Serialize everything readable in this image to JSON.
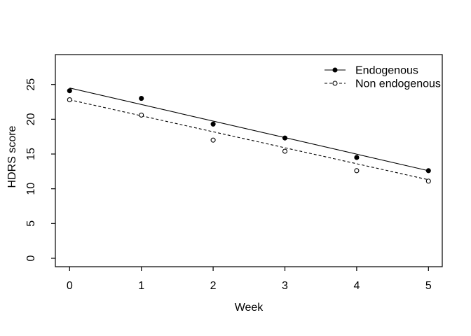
{
  "chart_data": {
    "type": "line",
    "xlabel": "Week",
    "ylabel": "HDRS score",
    "x": [
      0,
      1,
      2,
      3,
      4,
      5
    ],
    "xticks": [
      0,
      1,
      2,
      3,
      4,
      5
    ],
    "yticks": [
      0,
      5,
      10,
      15,
      20,
      25
    ],
    "xlim": [
      0,
      5
    ],
    "ylim": [
      0,
      25
    ],
    "grid": false,
    "legend_position": "top-right",
    "foreground_color": "#000000",
    "background_color": "#ffffff",
    "series": [
      {
        "name": "Endogenous",
        "marker": "filled-circle",
        "line_style": "solid",
        "values": [
          24.1,
          23.0,
          19.3,
          17.3,
          14.5,
          12.6
        ],
        "fit_line": {
          "x": [
            0,
            5
          ],
          "y": [
            24.5,
            12.6
          ]
        }
      },
      {
        "name": "Non endogenous",
        "marker": "open-circle",
        "line_style": "dashed",
        "values": [
          22.8,
          20.6,
          17.0,
          15.4,
          12.6,
          11.1
        ],
        "fit_line": {
          "x": [
            0,
            5
          ],
          "y": [
            22.8,
            11.3
          ]
        }
      }
    ]
  }
}
